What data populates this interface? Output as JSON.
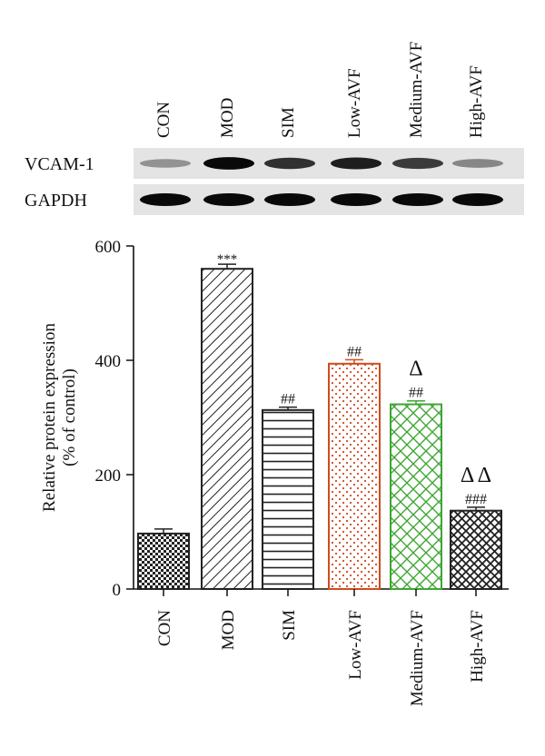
{
  "blot": {
    "lanes": [
      "CON",
      "MOD",
      "SIM",
      "Low-AVF",
      "Medium-AVF",
      "High-AVF"
    ],
    "rows": [
      {
        "label": "VCAM-1",
        "intensity": [
          0.25,
          0.95,
          0.75,
          0.85,
          0.7,
          0.3
        ]
      },
      {
        "label": "GAPDH",
        "intensity": [
          0.95,
          0.95,
          0.95,
          0.95,
          0.95,
          0.95
        ]
      }
    ]
  },
  "chart_data": {
    "type": "bar",
    "categories": [
      "CON",
      "MOD",
      "SIM",
      "Low-AVF",
      "Medium-AVF",
      "High-AVF"
    ],
    "values": [
      97,
      560,
      313,
      394,
      323,
      137
    ],
    "errors": [
      8,
      8,
      5,
      7,
      6,
      6
    ],
    "significance": [
      "",
      "***",
      "##",
      "##",
      "##",
      "###"
    ],
    "triangle_marks": [
      "",
      "",
      "",
      "",
      "Δ",
      "Δ Δ"
    ],
    "bar_patterns": [
      "checker",
      "diagonal",
      "horizontal",
      "dots",
      "crosshatch",
      "diagonal-dense"
    ],
    "bar_colors": [
      "#222222",
      "#222222",
      "#222222",
      "#d04a1e",
      "#3fa535",
      "#222222"
    ],
    "ylabel": "Relative protein expression\n(% of control)",
    "xlabel": "",
    "ylim": [
      0,
      600
    ],
    "yticks": [
      0,
      200,
      400,
      600
    ],
    "grid": false
  }
}
